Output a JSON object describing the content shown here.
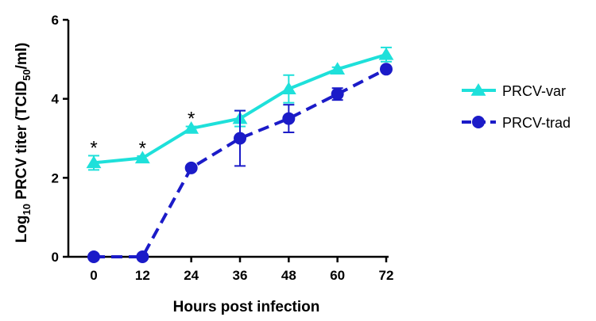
{
  "chart_data": {
    "type": "line",
    "xlabel": "Hours post infection",
    "ylabel_parts": {
      "prefix": "Log",
      "prefix_sub": "10",
      "middle": " PRCV titer (TCID",
      "middle_sub": "50",
      "suffix": "/ml)"
    },
    "x": [
      0,
      12,
      24,
      36,
      48,
      60,
      72
    ],
    "xlim": [
      0,
      72
    ],
    "ylim": [
      0,
      6
    ],
    "xticks": [
      "0",
      "12",
      "24",
      "36",
      "48",
      "60",
      "72"
    ],
    "yticks": [
      "0",
      "2",
      "4",
      "6"
    ],
    "legend_position": "right",
    "series": [
      {
        "name": "PRCV-var",
        "color": "#1EE0DA",
        "marker": "triangle",
        "line_style": "solid",
        "values": [
          2.38,
          2.5,
          3.25,
          3.5,
          4.25,
          4.75,
          5.12
        ],
        "error": [
          0.18,
          0.05,
          0.05,
          0.2,
          0.35,
          0.05,
          0.18
        ]
      },
      {
        "name": "PRCV-trad",
        "color": "#1B1BC8",
        "marker": "circle",
        "line_style": "dashed",
        "values": [
          0,
          0,
          2.25,
          3.0,
          3.5,
          4.12,
          4.75
        ],
        "error": [
          0,
          0,
          0,
          0.7,
          0.35,
          0.15,
          0
        ]
      }
    ],
    "annotations": [
      {
        "text": "*",
        "x": 0
      },
      {
        "text": "*",
        "x": 12
      },
      {
        "text": "*",
        "x": 24
      }
    ]
  }
}
